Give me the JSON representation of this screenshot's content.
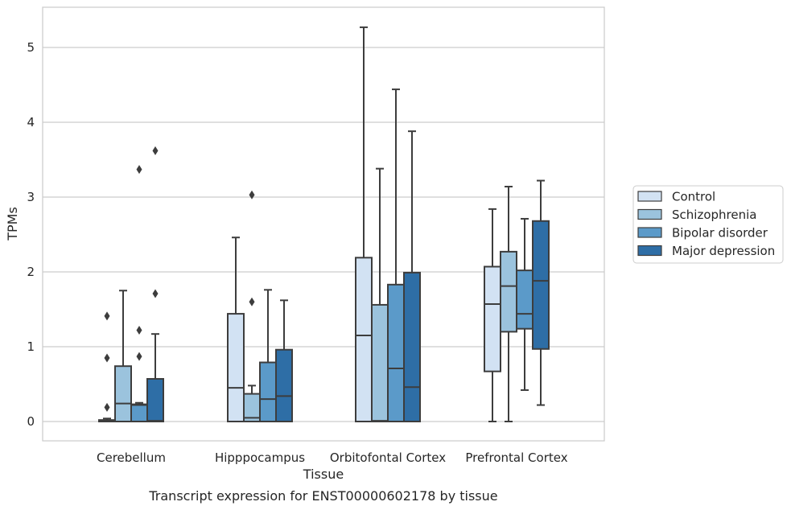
{
  "chart_data": {
    "type": "box",
    "caption": "Transcript expression for ENST00000602178 by tissue",
    "xlabel": "Tissue",
    "ylabel": "TPMs",
    "ylim": [
      -0.25,
      5.55
    ],
    "yticks": [
      0,
      1,
      2,
      3,
      4,
      5
    ],
    "grid": "horizontal",
    "legend_position": "right",
    "categories": [
      "Cerebellum",
      "Hipppocampus",
      "Orbitofontal Cortex",
      "Prefrontal Cortex"
    ],
    "series": [
      {
        "name": "Control",
        "color": "#d2e2f3",
        "boxes": [
          {
            "whisker_low": 0,
            "q1": 0,
            "median": 0.01,
            "q3": 0.02,
            "whisker_high": 0.04,
            "outliers": [
              0.19,
              0.85,
              1.41
            ]
          },
          {
            "whisker_low": 0,
            "q1": 0,
            "median": 0.45,
            "q3": 1.44,
            "whisker_high": 2.46,
            "outliers": []
          },
          {
            "whisker_low": 0,
            "q1": 0,
            "median": 1.15,
            "q3": 2.19,
            "whisker_high": 5.27,
            "outliers": []
          },
          {
            "whisker_low": 0,
            "q1": 0.67,
            "median": 1.57,
            "q3": 2.07,
            "whisker_high": 2.84,
            "outliers": []
          }
        ]
      },
      {
        "name": "Schizophrenia",
        "color": "#9bc3dd",
        "boxes": [
          {
            "whisker_low": 0,
            "q1": 0,
            "median": 0.24,
            "q3": 0.74,
            "whisker_high": 1.75,
            "outliers": []
          },
          {
            "whisker_low": 0,
            "q1": 0,
            "median": 0.05,
            "q3": 0.37,
            "whisker_high": 0.48,
            "outliers": [
              1.6,
              3.03
            ]
          },
          {
            "whisker_low": 0,
            "q1": 0,
            "median": 0.01,
            "q3": 1.56,
            "whisker_high": 3.38,
            "outliers": []
          },
          {
            "whisker_low": 0,
            "q1": 1.2,
            "median": 1.81,
            "q3": 2.27,
            "whisker_high": 3.14,
            "outliers": []
          }
        ]
      },
      {
        "name": "Bipolar disorder",
        "color": "#5b9ac9",
        "boxes": [
          {
            "whisker_low": 0,
            "q1": 0,
            "median": 0.22,
            "q3": 0.23,
            "whisker_high": 0.25,
            "outliers": [
              0.87,
              1.22,
              3.37
            ]
          },
          {
            "whisker_low": 0,
            "q1": 0,
            "median": 0.3,
            "q3": 0.79,
            "whisker_high": 1.76,
            "outliers": []
          },
          {
            "whisker_low": 0,
            "q1": 0,
            "median": 0.71,
            "q3": 1.83,
            "whisker_high": 4.44,
            "outliers": []
          },
          {
            "whisker_low": 0.42,
            "q1": 1.24,
            "median": 1.44,
            "q3": 2.02,
            "whisker_high": 2.71,
            "outliers": []
          }
        ]
      },
      {
        "name": "Major depression",
        "color": "#2e6ea6",
        "boxes": [
          {
            "whisker_low": 0,
            "q1": 0,
            "median": 0.01,
            "q3": 0.57,
            "whisker_high": 1.17,
            "outliers": [
              1.71,
              3.62
            ]
          },
          {
            "whisker_low": 0,
            "q1": 0,
            "median": 0.34,
            "q3": 0.96,
            "whisker_high": 1.62,
            "outliers": []
          },
          {
            "whisker_low": 0,
            "q1": 0,
            "median": 0.46,
            "q3": 1.99,
            "whisker_high": 3.88,
            "outliers": []
          },
          {
            "whisker_low": 0.22,
            "q1": 0.97,
            "median": 1.88,
            "q3": 2.68,
            "whisker_high": 3.22,
            "outliers": []
          }
        ]
      }
    ]
  }
}
